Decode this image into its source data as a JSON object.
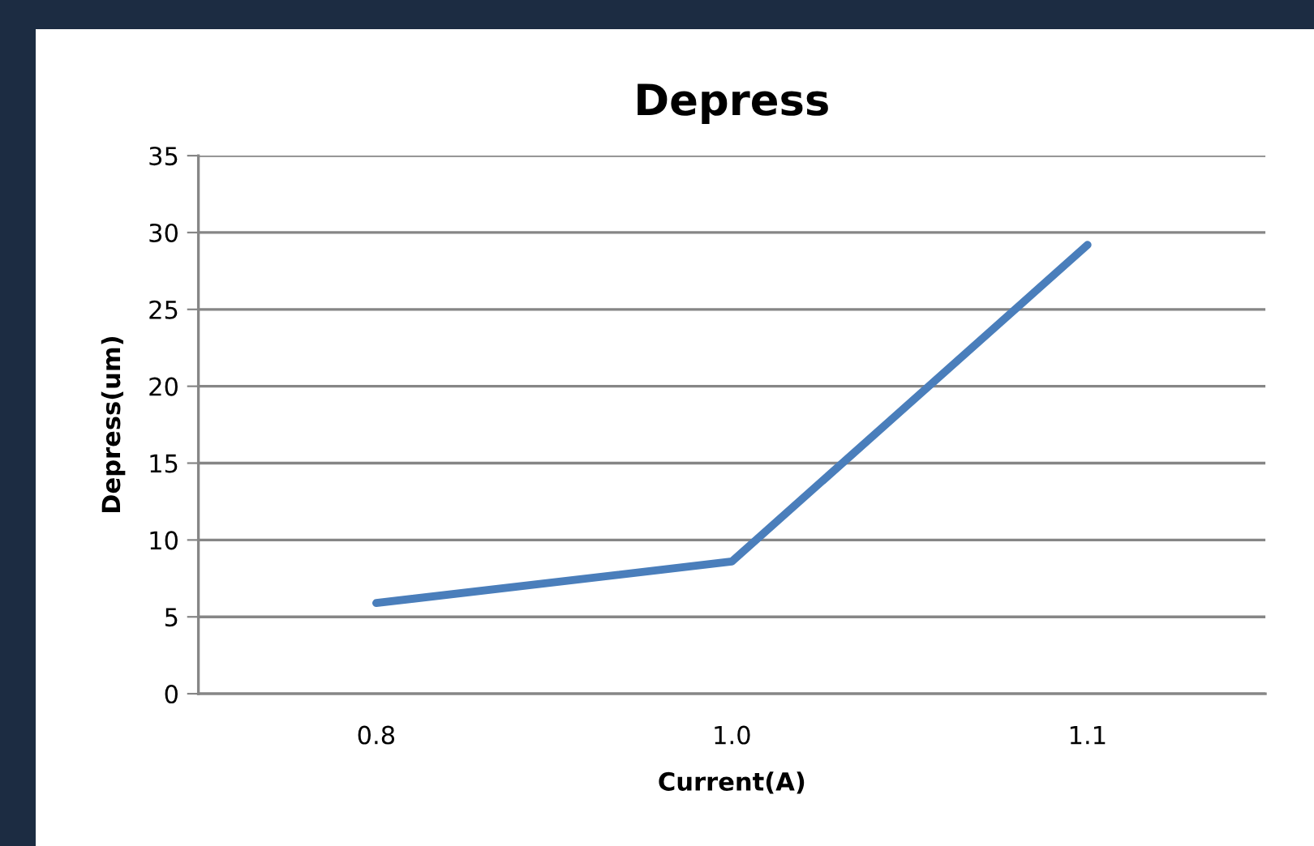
{
  "chart_data": {
    "type": "line",
    "title": "Depress",
    "xlabel": "Current(A)",
    "ylabel": "Depress(um)",
    "categories": [
      "0.8",
      "1.0",
      "1.1"
    ],
    "series": [
      {
        "color": "#4a7ebb",
        "values": [
          5.9,
          8.6,
          29.2
        ]
      }
    ],
    "ylim": [
      0,
      35
    ],
    "yticks": [
      0,
      5,
      10,
      15,
      20,
      25,
      30,
      35
    ],
    "grid": "y",
    "marker": "none",
    "line_style": "solid"
  }
}
